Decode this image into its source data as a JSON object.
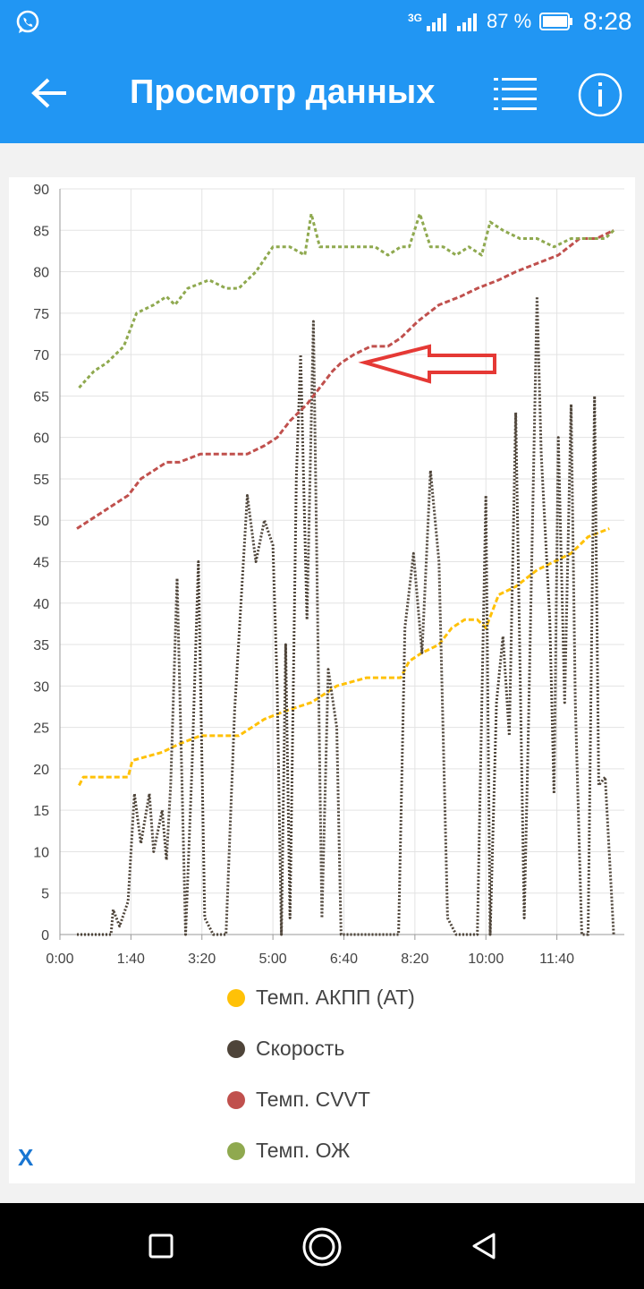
{
  "status_bar": {
    "network": "3G",
    "battery_percent": "87 %",
    "time": "8:28",
    "icons": [
      "whatsapp-icon",
      "signal-icon",
      "battery-icon"
    ]
  },
  "app_bar": {
    "title": "Просмотр данных",
    "icons": [
      "back-arrow-icon",
      "list-icon",
      "info-icon"
    ]
  },
  "colors": {
    "accent": "#2196f3",
    "series": [
      "#ffc107",
      "#4e4439",
      "#c0504d",
      "#8fa94f"
    ]
  },
  "chart_data": {
    "type": "line",
    "x_unit": "minutes",
    "xlim": [
      0,
      13.25
    ],
    "ylim": [
      0,
      90
    ],
    "x_tick_labels": [
      "0:00",
      "1:40",
      "3:20",
      "5:00",
      "6:40",
      "8:20",
      "10:00",
      "11:40"
    ],
    "y_tick_labels": [
      "0",
      "5",
      "10",
      "15",
      "20",
      "25",
      "30",
      "35",
      "40",
      "45",
      "50",
      "55",
      "60",
      "65",
      "70",
      "75",
      "80",
      "85",
      "90"
    ],
    "grid": true,
    "legend_position": "bottom",
    "series": [
      {
        "name": "Темп. АКПП (AT)",
        "x": [
          0.45,
          0.55,
          1.6,
          1.7,
          2.4,
          2.8,
          3.3,
          4.2,
          4.8,
          5.3,
          5.9,
          6.2,
          6.5,
          7.2,
          8.0,
          8.2,
          8.5,
          8.9,
          9.2,
          9.5,
          9.8,
          10.0,
          10.3,
          10.7,
          11.2,
          11.6,
          12.0,
          12.4,
          12.9
        ],
        "values": [
          18,
          19,
          19,
          21,
          22,
          23,
          24,
          24,
          26,
          27,
          28,
          29,
          30,
          31,
          31,
          33,
          34,
          35,
          37,
          38,
          38,
          37,
          41,
          42,
          44,
          45,
          46,
          48,
          49
        ]
      },
      {
        "name": "Скорость",
        "x": [
          0.4,
          1.2,
          1.25,
          1.4,
          1.6,
          1.75,
          1.9,
          2.1,
          2.2,
          2.4,
          2.5,
          2.6,
          2.75,
          2.95,
          3.1,
          3.25,
          3.4,
          3.6,
          3.75,
          3.9,
          4.1,
          4.4,
          4.6,
          4.8,
          5.0,
          5.1,
          5.2,
          5.3,
          5.4,
          5.55,
          5.65,
          5.8,
          5.95,
          6.15,
          6.3,
          6.5,
          6.6,
          6.7,
          6.8,
          7.1,
          7.5,
          7.8,
          7.95,
          8.1,
          8.3,
          8.5,
          8.7,
          8.9,
          9.1,
          9.3,
          9.45,
          9.6,
          9.8,
          10.0,
          10.1,
          10.25,
          10.4,
          10.55,
          10.7,
          10.9,
          11.0,
          11.2,
          11.3,
          11.5,
          11.6,
          11.7,
          11.85,
          12.0,
          12.1,
          12.25,
          12.4,
          12.55,
          12.65,
          12.8,
          13.0
        ],
        "values": [
          0,
          0,
          3,
          1,
          4,
          17,
          11,
          17,
          10,
          15,
          9,
          18,
          43,
          0,
          20,
          45,
          2,
          0,
          0,
          0,
          27,
          53,
          45,
          50,
          47,
          30,
          0,
          35,
          2,
          55,
          70,
          38,
          74,
          2,
          32,
          25,
          0,
          0,
          0,
          0,
          0,
          0,
          0,
          37,
          46,
          34,
          56,
          45,
          2,
          0,
          0,
          0,
          0,
          53,
          0,
          28,
          36,
          24,
          63,
          2,
          25,
          77,
          58,
          38,
          17,
          60,
          28,
          64,
          28,
          0,
          0,
          65,
          18,
          19,
          0
        ]
      },
      {
        "name": "Темп. CVVT",
        "x": [
          0.4,
          0.7,
          1.0,
          1.3,
          1.6,
          1.9,
          2.2,
          2.5,
          2.8,
          3.3,
          3.7,
          4.1,
          4.4,
          4.8,
          5.1,
          5.4,
          5.8,
          6.1,
          6.4,
          6.6,
          6.9,
          7.3,
          7.7,
          8.0,
          8.4,
          8.9,
          9.4,
          9.8,
          10.3,
          10.7,
          11.2,
          11.7,
          12.2,
          12.6,
          13.0
        ],
        "values": [
          49,
          50,
          51,
          52,
          53,
          55,
          56,
          57,
          57,
          58,
          58,
          58,
          58,
          59,
          60,
          62,
          64,
          66,
          68,
          69,
          70,
          71,
          71,
          72,
          74,
          76,
          77,
          78,
          79,
          80,
          81,
          82,
          84,
          84,
          85
        ]
      },
      {
        "name": "Темп. ОЖ",
        "x": [
          0.45,
          0.8,
          1.1,
          1.5,
          1.8,
          2.2,
          2.5,
          2.7,
          3.0,
          3.5,
          3.9,
          4.2,
          4.6,
          5.0,
          5.4,
          5.75,
          5.9,
          6.1,
          6.3,
          6.6,
          7.0,
          7.4,
          7.7,
          8.0,
          8.2,
          8.45,
          8.7,
          9.0,
          9.3,
          9.6,
          9.9,
          10.1,
          10.4,
          10.8,
          11.2,
          11.6,
          12.0,
          12.4,
          12.8,
          13.0
        ],
        "values": [
          66,
          68,
          69,
          71,
          75,
          76,
          77,
          76,
          78,
          79,
          78,
          78,
          80,
          83,
          83,
          82,
          87,
          83,
          83,
          83,
          83,
          83,
          82,
          83,
          83,
          87,
          83,
          83,
          82,
          83,
          82,
          86,
          85,
          84,
          84,
          83,
          84,
          84,
          84,
          85
        ]
      }
    ]
  },
  "close_label": "X",
  "nav_bar": {
    "icons": [
      "square-icon",
      "home-circle-icon",
      "back-triangle-icon"
    ]
  }
}
